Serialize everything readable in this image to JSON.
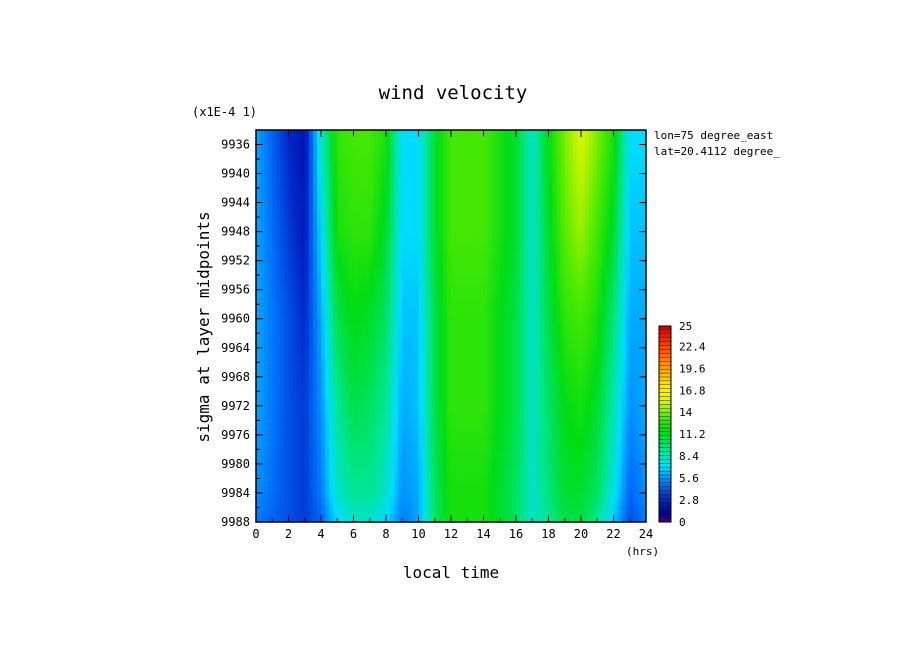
{
  "chart_data": {
    "type": "heatmap",
    "title": "wind velocity",
    "xlabel": "local time",
    "ylabel": "sigma at layer midpoints",
    "x_unit": "(hrs)",
    "y_scale_note": "(x1E-4 1)",
    "annotations": [
      "lon=75 degree_east",
      "lat=20.4112 degree_"
    ],
    "xlim": [
      0,
      24
    ],
    "ylim": [
      9934,
      9988
    ],
    "y_inverted": true,
    "x_ticks": [
      "0",
      "2",
      "4",
      "6",
      "8",
      "10",
      "12",
      "14",
      "16",
      "18",
      "20",
      "22",
      "24"
    ],
    "y_ticks": [
      "9936",
      "9940",
      "9944",
      "9948",
      "9952",
      "9956",
      "9960",
      "9964",
      "9968",
      "9972",
      "9976",
      "9980",
      "9984",
      "9988"
    ],
    "colorbar": {
      "min": 0,
      "max": 25,
      "ticks": [
        "25",
        "22.4",
        "19.6",
        "16.8",
        "14",
        "11.2",
        "8.4",
        "5.6",
        "2.8",
        "0"
      ]
    },
    "x": [
      0,
      2,
      3,
      4,
      5,
      6,
      7,
      8,
      9,
      10,
      11,
      12,
      14,
      16,
      17,
      18,
      19,
      20,
      21,
      22,
      23,
      24
    ],
    "y": [
      9936,
      9948,
      9960,
      9972,
      9984,
      9988
    ],
    "values": [
      [
        6,
        3,
        2,
        8,
        12.5,
        13,
        13,
        12,
        7,
        7,
        11,
        13,
        13,
        11,
        8,
        11.5,
        14,
        15.5,
        14,
        12,
        7,
        7
      ],
      [
        6,
        3.5,
        2.5,
        7,
        12,
        12.5,
        12.5,
        11,
        7,
        7,
        11,
        13,
        13,
        11,
        8,
        11,
        13.5,
        14.5,
        13,
        11,
        6.5,
        6.5
      ],
      [
        6,
        4,
        3,
        6,
        10.5,
        11.5,
        11,
        10,
        6.5,
        6.5,
        10.5,
        12.5,
        12.5,
        10.5,
        8,
        10.5,
        12.5,
        13,
        12,
        9.5,
        6,
        6
      ],
      [
        6,
        4,
        3.5,
        5.5,
        9,
        10.5,
        10,
        9,
        6,
        6.5,
        10.5,
        12.5,
        12.5,
        10.5,
        8,
        10,
        11.5,
        12,
        11,
        8.5,
        5.5,
        6
      ],
      [
        5.5,
        4,
        3.5,
        5,
        8,
        9,
        9,
        8,
        5.5,
        6,
        10,
        12,
        12,
        10,
        8,
        9.5,
        11,
        11,
        10,
        7.5,
        4.5,
        5.5
      ],
      [
        5,
        4,
        3.5,
        4.5,
        7,
        8,
        8,
        7,
        5,
        6,
        10,
        12,
        12,
        10,
        8,
        9,
        10.5,
        10.5,
        9,
        6.5,
        4,
        5
      ]
    ],
    "grid": false,
    "legend": "colorbar right"
  }
}
